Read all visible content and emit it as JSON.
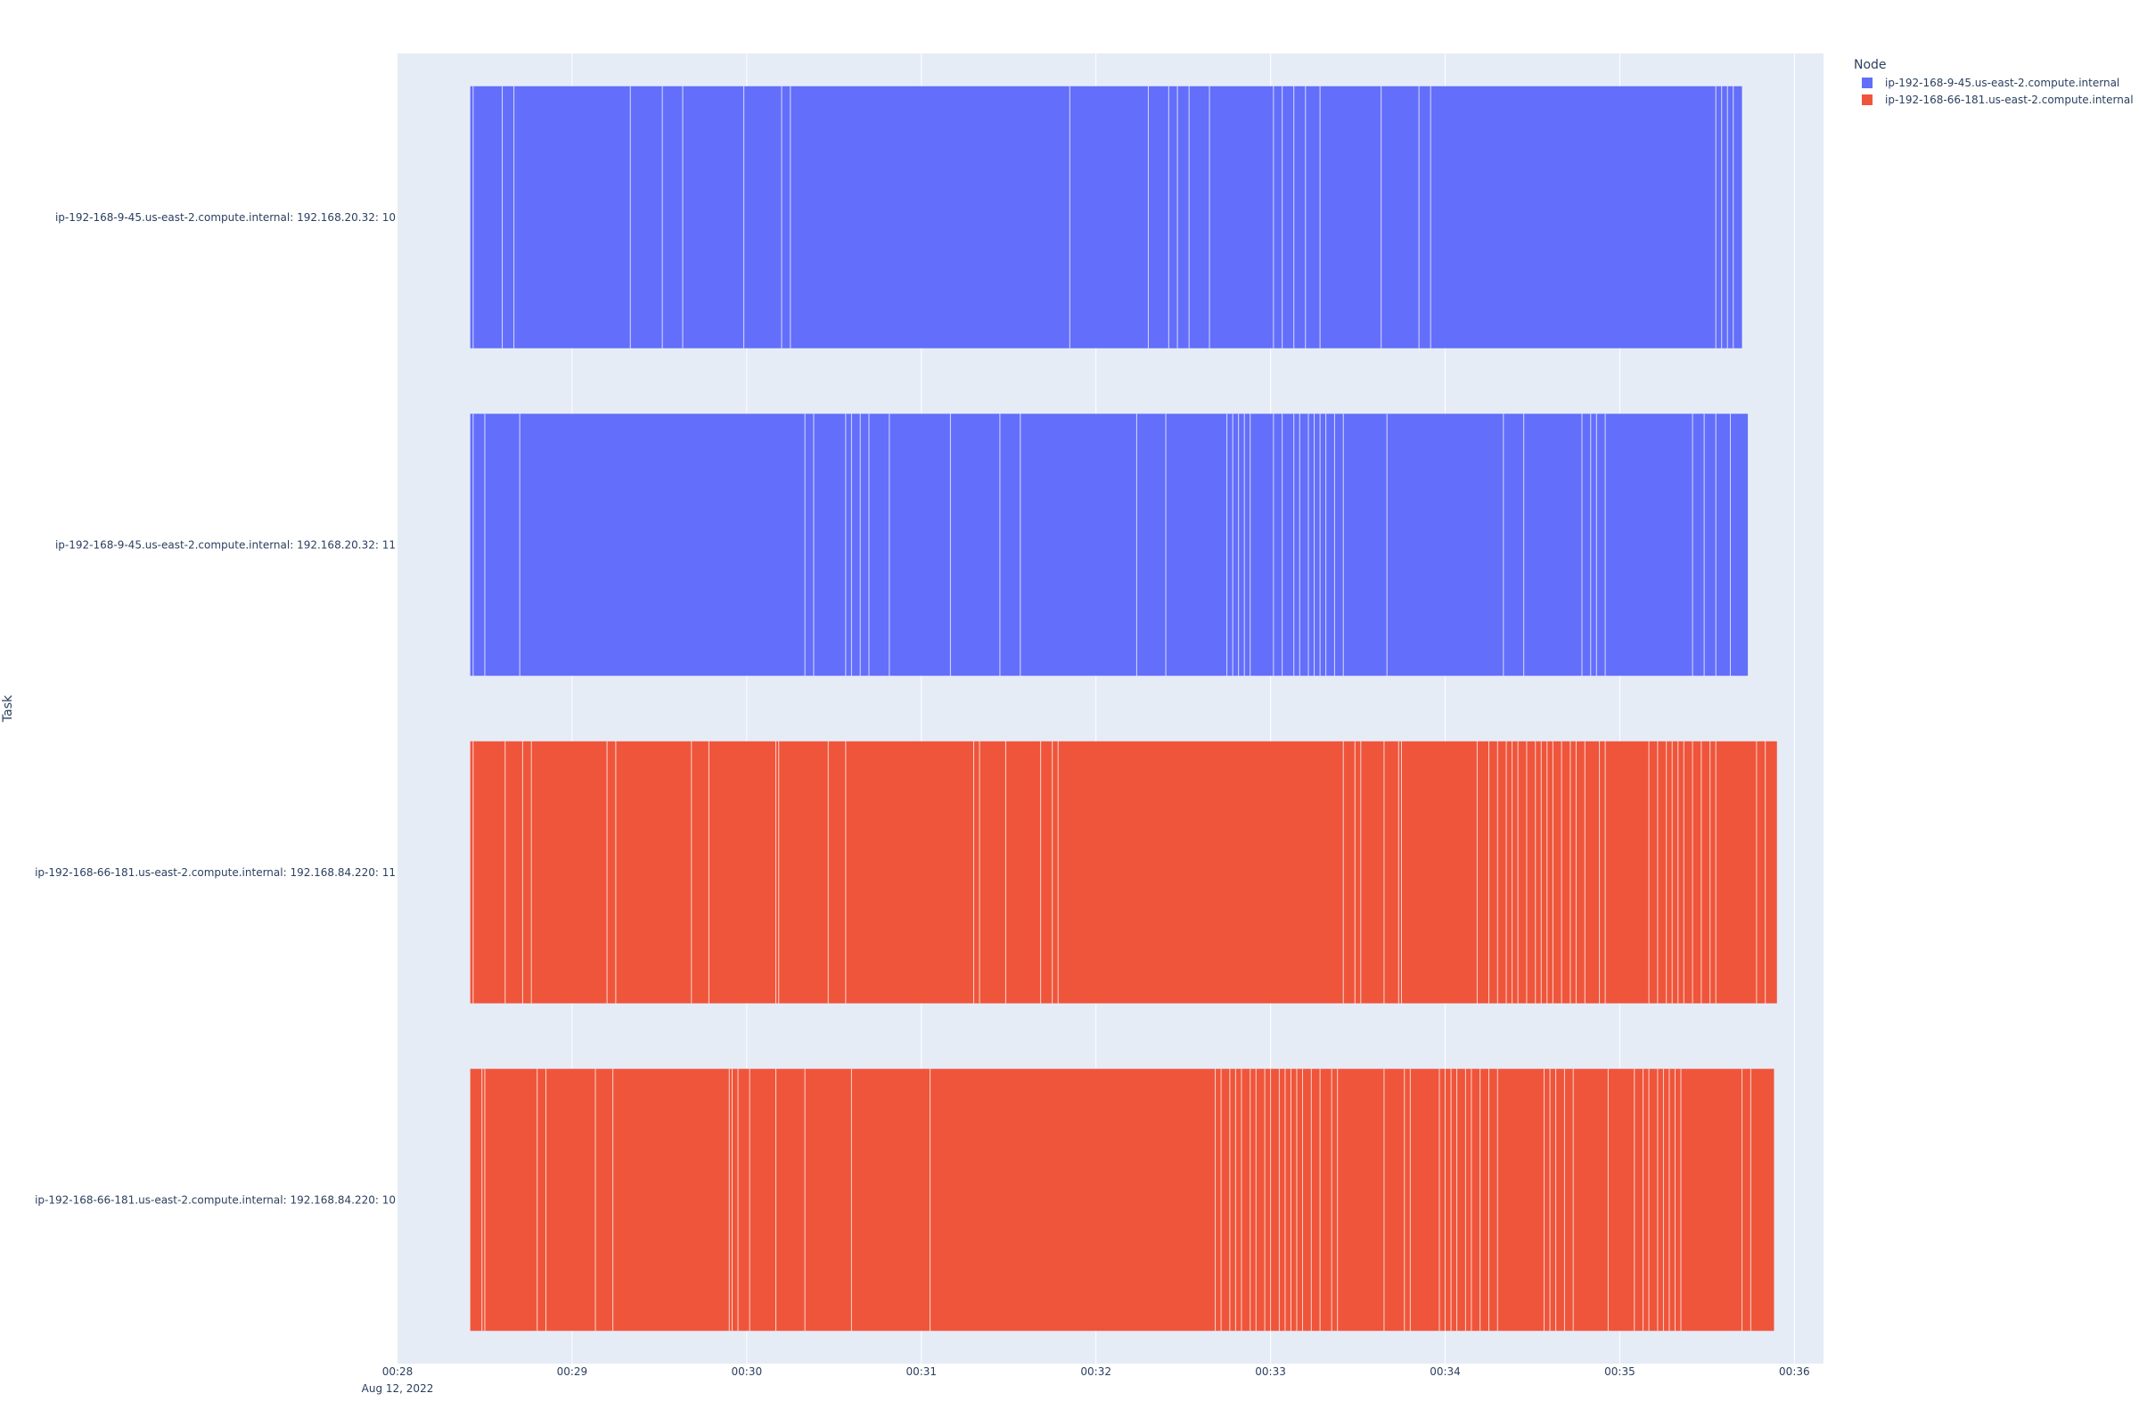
{
  "chart_data": {
    "type": "timeline",
    "xlabel": "",
    "ylabel": "Task",
    "x_tick_labels": [
      "00:28",
      "00:29",
      "00:30",
      "00:31",
      "00:32",
      "00:33",
      "00:34",
      "00:35",
      "00:36"
    ],
    "x_date_label": "Aug 12, 2022",
    "x_range": [
      "2022-08-12 00:28:00",
      "2022-08-12 00:36:10"
    ],
    "grid": true,
    "plot_bgcolor": "#E5ECF6",
    "legend": {
      "title": "Node",
      "position": "top-right",
      "entries": [
        {
          "name": "ip-192-168-9-45.us-east-2.compute.internal",
          "color": "#636EFA"
        },
        {
          "name": "ip-192-168-66-181.us-east-2.compute.internal",
          "color": "#EF553B"
        }
      ]
    },
    "tasks": [
      {
        "label": "ip-192-168-9-45.us-east-2.compute.internal: 192.168.20.32: 10",
        "node": "ip-192-168-9-45.us-east-2.compute.internal",
        "color": "#636EFA",
        "start": "00:28:25",
        "end": "00:35:42",
        "boundaries": [
          "00:28:26",
          "00:28:36",
          "00:28:40",
          "00:29:20",
          "00:29:31",
          "00:29:38",
          "00:29:59",
          "00:30:12",
          "00:30:15",
          "00:31:51",
          "00:32:18",
          "00:32:25",
          "00:32:28",
          "00:32:32",
          "00:32:39",
          "00:33:01",
          "00:33:04",
          "00:33:08",
          "00:33:12",
          "00:33:17",
          "00:33:38",
          "00:33:51",
          "00:33:55",
          "00:35:33",
          "00:35:35",
          "00:35:37",
          "00:35:39"
        ]
      },
      {
        "label": "ip-192-168-9-45.us-east-2.compute.internal: 192.168.20.32: 11",
        "node": "ip-192-168-9-45.us-east-2.compute.internal",
        "color": "#636EFA",
        "start": "00:28:25",
        "end": "00:35:44",
        "boundaries": [
          "00:28:26",
          "00:28:30",
          "00:28:42",
          "00:30:20",
          "00:30:23",
          "00:30:34",
          "00:30:36",
          "00:30:39",
          "00:30:42",
          "00:30:49",
          "00:31:10",
          "00:31:27",
          "00:31:34",
          "00:32:14",
          "00:32:24",
          "00:32:45",
          "00:32:47",
          "00:32:49",
          "00:32:51",
          "00:32:53",
          "00:33:01",
          "00:33:04",
          "00:33:08",
          "00:33:10",
          "00:33:13",
          "00:33:15",
          "00:33:17",
          "00:33:19",
          "00:33:22",
          "00:33:25",
          "00:33:40",
          "00:34:20",
          "00:34:27",
          "00:34:47",
          "00:34:50",
          "00:34:52",
          "00:34:55",
          "00:35:25",
          "00:35:29",
          "00:35:33",
          "00:35:38"
        ]
      },
      {
        "label": "ip-192-168-66-181.us-east-2.compute.internal: 192.168.84.220: 11",
        "node": "ip-192-168-66-181.us-east-2.compute.internal",
        "color": "#EF553B",
        "start": "00:28:25",
        "end": "00:35:54",
        "boundaries": [
          "00:28:26",
          "00:28:37",
          "00:28:43",
          "00:28:46",
          "00:29:12",
          "00:29:15",
          "00:29:41",
          "00:29:47",
          "00:30:10",
          "00:30:11",
          "00:30:28",
          "00:30:34",
          "00:31:18",
          "00:31:20",
          "00:31:29",
          "00:31:41",
          "00:31:45",
          "00:31:47",
          "00:33:25",
          "00:33:29",
          "00:33:31",
          "00:33:39",
          "00:33:44",
          "00:33:45",
          "00:34:11",
          "00:34:15",
          "00:34:18",
          "00:34:21",
          "00:34:23",
          "00:34:25",
          "00:34:28",
          "00:34:31",
          "00:34:33",
          "00:34:35",
          "00:34:37",
          "00:34:40",
          "00:34:43",
          "00:34:45",
          "00:34:48",
          "00:34:53",
          "00:34:55",
          "00:35:10",
          "00:35:13",
          "00:35:16",
          "00:35:18",
          "00:35:20",
          "00:35:22",
          "00:35:25",
          "00:35:28",
          "00:35:31",
          "00:35:33",
          "00:35:47",
          "00:35:50"
        ]
      },
      {
        "label": "ip-192-168-66-181.us-east-2.compute.internal: 192.168.84.220: 10",
        "node": "ip-192-168-66-181.us-east-2.compute.internal",
        "color": "#EF553B",
        "start": "00:28:25",
        "end": "00:35:53",
        "boundaries": [
          "00:28:29",
          "00:28:30",
          "00:28:48",
          "00:28:51",
          "00:29:08",
          "00:29:14",
          "00:29:54",
          "00:29:55",
          "00:29:57",
          "00:30:01",
          "00:30:10",
          "00:30:20",
          "00:30:36",
          "00:31:03",
          "00:32:41",
          "00:32:43",
          "00:32:46",
          "00:32:48",
          "00:32:50",
          "00:32:53",
          "00:32:55",
          "00:32:58",
          "00:33:00",
          "00:33:03",
          "00:33:05",
          "00:33:07",
          "00:33:09",
          "00:33:11",
          "00:33:14",
          "00:33:17",
          "00:33:21",
          "00:33:23",
          "00:33:39",
          "00:33:46",
          "00:33:48",
          "00:33:58",
          "00:34:00",
          "00:34:02",
          "00:34:04",
          "00:34:07",
          "00:34:09",
          "00:34:12",
          "00:34:15",
          "00:34:18",
          "00:34:34",
          "00:34:36",
          "00:34:38",
          "00:34:41",
          "00:34:44",
          "00:34:56",
          "00:35:05",
          "00:35:08",
          "00:35:10",
          "00:35:13",
          "00:35:15",
          "00:35:17",
          "00:35:19",
          "00:35:21",
          "00:35:42",
          "00:35:45"
        ]
      }
    ]
  }
}
